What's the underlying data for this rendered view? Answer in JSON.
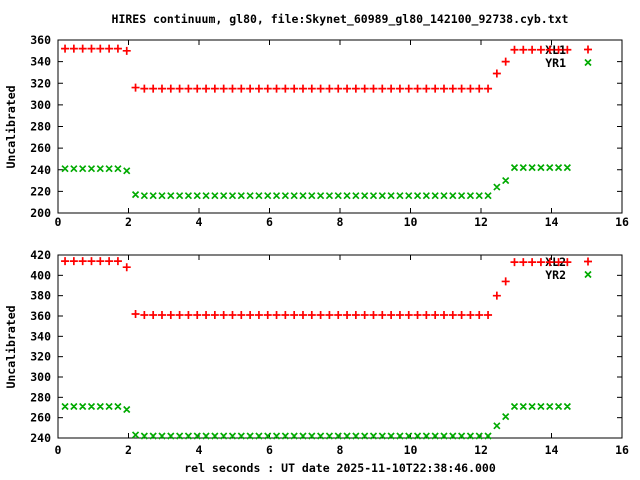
{
  "title": "HIRES continuum, gl80, file:Skynet_60989_gl80_142100_92738.cyb.txt",
  "xlabel": "rel seconds : UT date 2025-11-10T22:38:46.000",
  "colors": {
    "series_red": "#ff0000",
    "series_green": "#00aa00",
    "axis": "#000000",
    "background": "#ffffff"
  },
  "chart_data": [
    {
      "type": "scatter",
      "ylabel": "Uncalibrated",
      "xlim": [
        0,
        16
      ],
      "ylim": [
        200,
        360
      ],
      "xtick_step": 2,
      "ytick_step": 20,
      "grid": false,
      "legend_position": "top-right-inside",
      "x": [
        0.2,
        0.45,
        0.7,
        0.95,
        1.2,
        1.45,
        1.7,
        1.95,
        2.2,
        2.45,
        2.7,
        2.95,
        3.2,
        3.45,
        3.7,
        3.95,
        4.2,
        4.45,
        4.7,
        4.95,
        5.2,
        5.45,
        5.7,
        5.95,
        6.2,
        6.45,
        6.7,
        6.95,
        7.2,
        7.45,
        7.7,
        7.95,
        8.2,
        8.45,
        8.7,
        8.95,
        9.2,
        9.45,
        9.7,
        9.95,
        10.2,
        10.45,
        10.7,
        10.95,
        11.2,
        11.45,
        11.7,
        11.95,
        12.2,
        12.45,
        12.7,
        12.95,
        13.2,
        13.45,
        13.7,
        13.95,
        14.2,
        14.45
      ],
      "series": [
        {
          "name": "XL1",
          "marker": "plus",
          "color": "#ff0000",
          "values": [
            352,
            352,
            352,
            352,
            352,
            352,
            352,
            350,
            316,
            315,
            315,
            315,
            315,
            315,
            315,
            315,
            315,
            315,
            315,
            315,
            315,
            315,
            315,
            315,
            315,
            315,
            315,
            315,
            315,
            315,
            315,
            315,
            315,
            315,
            315,
            315,
            315,
            315,
            315,
            315,
            315,
            315,
            315,
            315,
            315,
            315,
            315,
            315,
            315,
            329,
            340,
            351,
            351,
            351,
            351,
            351,
            351,
            351
          ]
        },
        {
          "name": "YR1",
          "marker": "cross",
          "color": "#00aa00",
          "values": [
            241,
            241,
            241,
            241,
            241,
            241,
            241,
            239,
            217,
            216,
            216,
            216,
            216,
            216,
            216,
            216,
            216,
            216,
            216,
            216,
            216,
            216,
            216,
            216,
            216,
            216,
            216,
            216,
            216,
            216,
            216,
            216,
            216,
            216,
            216,
            216,
            216,
            216,
            216,
            216,
            216,
            216,
            216,
            216,
            216,
            216,
            216,
            216,
            216,
            224,
            230,
            242,
            242,
            242,
            242,
            242,
            242,
            242
          ]
        }
      ]
    },
    {
      "type": "scatter",
      "ylabel": "Uncalibrated",
      "xlim": [
        0,
        16
      ],
      "ylim": [
        240,
        420
      ],
      "xtick_step": 2,
      "ytick_step": 20,
      "grid": false,
      "legend_position": "top-right-inside",
      "x": [
        0.2,
        0.45,
        0.7,
        0.95,
        1.2,
        1.45,
        1.7,
        1.95,
        2.2,
        2.45,
        2.7,
        2.95,
        3.2,
        3.45,
        3.7,
        3.95,
        4.2,
        4.45,
        4.7,
        4.95,
        5.2,
        5.45,
        5.7,
        5.95,
        6.2,
        6.45,
        6.7,
        6.95,
        7.2,
        7.45,
        7.7,
        7.95,
        8.2,
        8.45,
        8.7,
        8.95,
        9.2,
        9.45,
        9.7,
        9.95,
        10.2,
        10.45,
        10.7,
        10.95,
        11.2,
        11.45,
        11.7,
        11.95,
        12.2,
        12.45,
        12.7,
        12.95,
        13.2,
        13.45,
        13.7,
        13.95,
        14.2,
        14.45
      ],
      "series": [
        {
          "name": "XL2",
          "marker": "plus",
          "color": "#ff0000",
          "values": [
            414,
            414,
            414,
            414,
            414,
            414,
            414,
            408,
            362,
            361,
            361,
            361,
            361,
            361,
            361,
            361,
            361,
            361,
            361,
            361,
            361,
            361,
            361,
            361,
            361,
            361,
            361,
            361,
            361,
            361,
            361,
            361,
            361,
            361,
            361,
            361,
            361,
            361,
            361,
            361,
            361,
            361,
            361,
            361,
            361,
            361,
            361,
            361,
            361,
            380,
            394,
            413,
            413,
            413,
            413,
            413,
            413,
            413
          ]
        },
        {
          "name": "YR2",
          "marker": "cross",
          "color": "#00aa00",
          "values": [
            271,
            271,
            271,
            271,
            271,
            271,
            271,
            268,
            243,
            242,
            242,
            242,
            242,
            242,
            242,
            242,
            242,
            242,
            242,
            242,
            242,
            242,
            242,
            242,
            242,
            242,
            242,
            242,
            242,
            242,
            242,
            242,
            242,
            242,
            242,
            242,
            242,
            242,
            242,
            242,
            242,
            242,
            242,
            242,
            242,
            242,
            242,
            242,
            242,
            252,
            261,
            271,
            271,
            271,
            271,
            271,
            271,
            271
          ]
        }
      ]
    }
  ]
}
